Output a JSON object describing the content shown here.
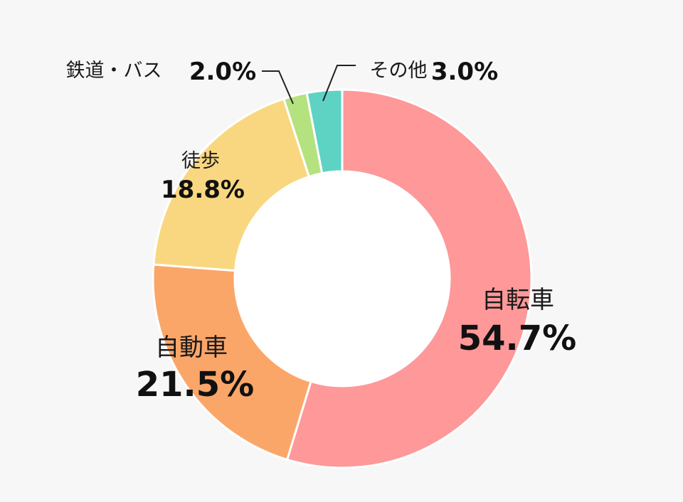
{
  "chart_data": {
    "type": "pie",
    "donut": true,
    "categories": [
      "自転車",
      "自動車",
      "徒歩",
      "鉄道・バス",
      "その他"
    ],
    "values": [
      54.7,
      21.5,
      18.8,
      2.0,
      3.0
    ],
    "value_labels": [
      "54.7%",
      "21.5%",
      "18.8%",
      "2.0%",
      "3.0%"
    ],
    "colors": [
      "#fe9899",
      "#fba669",
      "#f9d781",
      "#b4e27f",
      "#5ed3c4"
    ],
    "order_clockwise_from_top": [
      "自転車",
      "自動車",
      "徒歩",
      "鉄道・バス",
      "その他"
    ],
    "legend": "none"
  }
}
